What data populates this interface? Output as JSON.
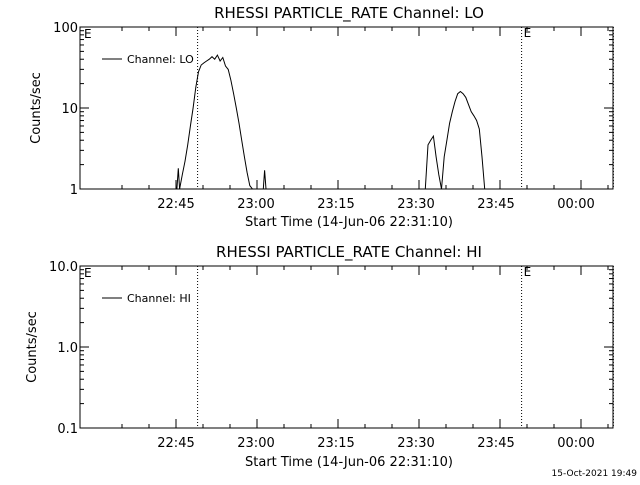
{
  "footer": {
    "timestamp": "15-Oct-2021 19:49"
  },
  "chart_data": [
    {
      "type": "line",
      "title": "RHESSI PARTICLE_RATE Channel: LO",
      "xlabel": "Start Time (14-Jun-06 22:31:10)",
      "ylabel": "Counts/sec",
      "yscale": "log",
      "ylim": [
        1,
        100
      ],
      "ytick_values": [
        1,
        10,
        100
      ],
      "ytick_labels": [
        "1",
        "10",
        "100"
      ],
      "xtick_labels": [
        "22:45",
        "23:00",
        "23:15",
        "23:30",
        "23:45",
        "00:00"
      ],
      "legend": {
        "label": "Channel: LO",
        "position": "top-left"
      },
      "event_markers": [
        {
          "time": "22:49:00",
          "label": ""
        },
        {
          "time": "23:49:00",
          "label": "E"
        },
        {
          "time": "00:06:00",
          "label": ""
        }
      ],
      "corner_label": "E",
      "line_color": "#000000",
      "series": [
        {
          "name": "Channel: LO",
          "segments": [
            {
              "x": [
                "22:45:40",
                "22:46:10",
                "22:46:40",
                "22:47:10",
                "22:47:40",
                "22:48:10",
                "22:48:40",
                "22:49:10",
                "22:49:40",
                "22:50:10",
                "22:50:40",
                "22:51:10",
                "22:51:40",
                "22:52:10",
                "22:52:40",
                "22:53:10",
                "22:53:40",
                "22:54:10",
                "22:54:40",
                "22:55:10",
                "22:55:40",
                "22:56:10",
                "22:56:40",
                "22:57:10",
                "22:57:40",
                "22:58:10",
                "22:58:40",
                "22:59:10"
              ],
              "y": [
                1.0,
                1.5,
                2.2,
                3.5,
                6.0,
                10.0,
                18.0,
                28.0,
                34.0,
                36.0,
                38.0,
                40.0,
                43.0,
                40.0,
                45.0,
                38.0,
                42.0,
                33.0,
                30.0,
                22.0,
                15.0,
                10.0,
                6.5,
                4.0,
                2.5,
                1.6,
                1.1,
                1.0
              ]
            },
            {
              "x": [
                "22:45:10",
                "22:45:25",
                "22:45:40"
              ],
              "y": [
                1.0,
                1.8,
                1.0
              ]
            },
            {
              "x": [
                "23:01:10",
                "23:01:25",
                "23:01:40"
              ],
              "y": [
                1.0,
                1.7,
                1.0
              ]
            },
            {
              "x": [
                "23:31:10",
                "23:31:40",
                "23:32:10",
                "23:32:40",
                "23:33:10",
                "23:33:40",
                "23:34:10"
              ],
              "y": [
                1.0,
                3.5,
                4.0,
                4.5,
                2.5,
                1.5,
                1.0
              ]
            },
            {
              "x": [
                "23:34:10",
                "23:34:40",
                "23:35:10",
                "23:35:40",
                "23:36:10",
                "23:36:40",
                "23:37:10",
                "23:37:40",
                "23:38:10",
                "23:38:40",
                "23:39:10",
                "23:39:40",
                "23:40:10",
                "23:40:40",
                "23:41:10",
                "23:41:40",
                "23:42:10"
              ],
              "y": [
                1.0,
                2.5,
                4.0,
                6.5,
                9.0,
                12.0,
                15.0,
                16.0,
                15.0,
                13.5,
                11.0,
                9.0,
                8.0,
                7.0,
                5.5,
                2.5,
                1.0
              ]
            }
          ]
        }
      ]
    },
    {
      "type": "line",
      "title": "RHESSI PARTICLE_RATE Channel: HI",
      "xlabel": "Start Time (14-Jun-06 22:31:10)",
      "ylabel": "Counts/sec",
      "yscale": "log",
      "ylim": [
        0.1,
        10
      ],
      "ytick_values": [
        0.1,
        1,
        10
      ],
      "ytick_labels": [
        "0.1",
        "1.0",
        "10.0"
      ],
      "xtick_labels": [
        "22:45",
        "23:00",
        "23:15",
        "23:30",
        "23:45",
        "00:00"
      ],
      "legend": {
        "label": "Channel: HI",
        "position": "top-left"
      },
      "event_markers": [
        {
          "time": "22:49:00",
          "label": ""
        },
        {
          "time": "23:49:00",
          "label": "E"
        },
        {
          "time": "00:06:00",
          "label": ""
        }
      ],
      "corner_label": "E",
      "line_color": "#000000",
      "series": [
        {
          "name": "Channel: HI",
          "segments": []
        }
      ]
    }
  ]
}
